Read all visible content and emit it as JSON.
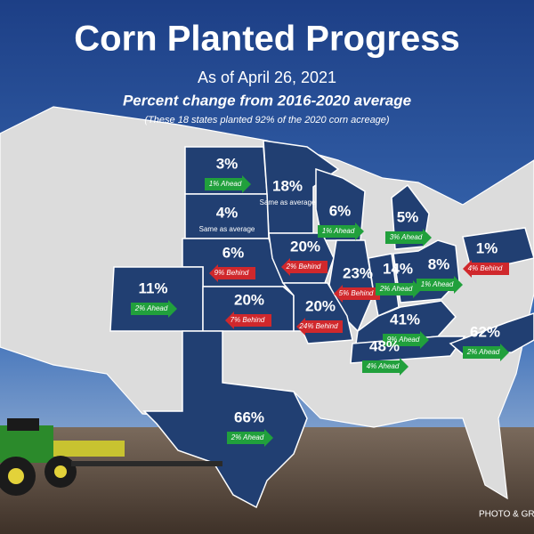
{
  "title": "Corn Planted Progress",
  "subtitle": "As of April 26, 2021",
  "description": "Percent change from 2016-2020 average",
  "note": "(These 18 states planted 92% of the 2020 corn acreage)",
  "credit": "PHOTO & GRA",
  "states": [
    {
      "percent": "3%",
      "change": "1% Ahead",
      "color": "#21a03c",
      "arrow": "right"
    },
    {
      "percent": "18%",
      "change": "Same as average"
    },
    {
      "percent": "4%",
      "change": "Same as average"
    },
    {
      "percent": "6%",
      "change": "1% Ahead",
      "color": "#21a03c",
      "arrow": "right"
    },
    {
      "percent": "5%",
      "change": "3% Ahead",
      "color": "#21a03c",
      "arrow": "right"
    },
    {
      "percent": "6%",
      "change": "9% Behind",
      "color": "#d0282c",
      "arrow": "left"
    },
    {
      "percent": "20%",
      "change": "2% Behind",
      "color": "#d0282c",
      "arrow": "left"
    },
    {
      "percent": "23%",
      "change": "5% Behind",
      "color": "#d0282c",
      "arrow": "left"
    },
    {
      "percent": "14%",
      "change": "2% Ahead",
      "color": "#21a03c",
      "arrow": "right"
    },
    {
      "percent": "8%",
      "change": "1% Ahead",
      "color": "#21a03c",
      "arrow": "right"
    },
    {
      "percent": "1%",
      "change": "4% Behind",
      "color": "#d0282c",
      "arrow": "left"
    },
    {
      "percent": "11%",
      "change": "2% Ahead",
      "color": "#21a03c",
      "arrow": "right"
    },
    {
      "percent": "20%",
      "change": "7% Behind",
      "color": "#d0282c",
      "arrow": "left"
    },
    {
      "percent": "20%",
      "change": "24% Behind",
      "color": "#d0282c",
      "arrow": "left"
    },
    {
      "percent": "41%",
      "change": "9% Ahead",
      "color": "#21a03c",
      "arrow": "right"
    },
    {
      "percent": "48%",
      "change": "4% Ahead",
      "color": "#21a03c",
      "arrow": "right"
    },
    {
      "percent": "62%",
      "change": "2% Ahead",
      "color": "#21a03c",
      "arrow": "right"
    },
    {
      "percent": "66%",
      "change": "2% Ahead",
      "color": "#21a03c",
      "arrow": "right"
    }
  ]
}
